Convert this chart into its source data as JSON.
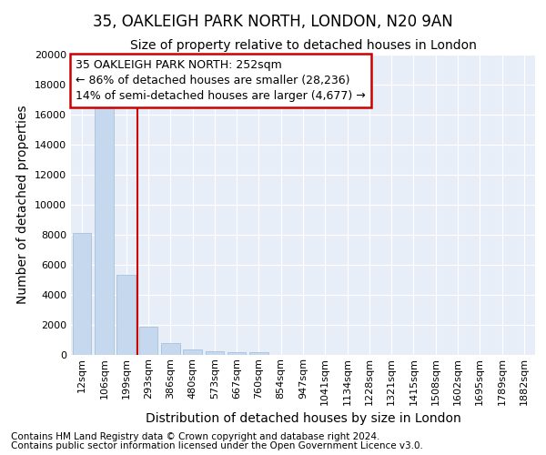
{
  "title1": "35, OAKLEIGH PARK NORTH, LONDON, N20 9AN",
  "title2": "Size of property relative to detached houses in London",
  "xlabel": "Distribution of detached houses by size in London",
  "ylabel": "Number of detached properties",
  "categories": [
    "12sqm",
    "106sqm",
    "199sqm",
    "293sqm",
    "386sqm",
    "480sqm",
    "573sqm",
    "667sqm",
    "760sqm",
    "854sqm",
    "947sqm",
    "1041sqm",
    "1134sqm",
    "1228sqm",
    "1321sqm",
    "1415sqm",
    "1508sqm",
    "1602sqm",
    "1695sqm",
    "1789sqm",
    "1882sqm"
  ],
  "values": [
    8100,
    16500,
    5350,
    1850,
    800,
    350,
    250,
    200,
    200,
    0,
    0,
    0,
    0,
    0,
    0,
    0,
    0,
    0,
    0,
    0,
    0
  ],
  "bar_color": "#c5d8ed",
  "bar_edge_color": "#9dbcd8",
  "vline_x": 2.5,
  "annotation_text": "35 OAKLEIGH PARK NORTH: 252sqm\n← 86% of detached houses are smaller (28,236)\n14% of semi-detached houses are larger (4,677) →",
  "annotation_box_color": "#ffffff",
  "annotation_box_edge": "#cc0000",
  "vline_color": "#cc0000",
  "footnote1": "Contains HM Land Registry data © Crown copyright and database right 2024.",
  "footnote2": "Contains public sector information licensed under the Open Government Licence v3.0.",
  "ylim": [
    0,
    20000
  ],
  "bg_color": "#e8eef8",
  "grid_color": "#ffffff",
  "fig_bg_color": "#ffffff",
  "title_fontsize": 12,
  "subtitle_fontsize": 10,
  "axis_label_fontsize": 10,
  "tick_fontsize": 8,
  "footnote_fontsize": 7.5,
  "annot_fontsize": 9
}
